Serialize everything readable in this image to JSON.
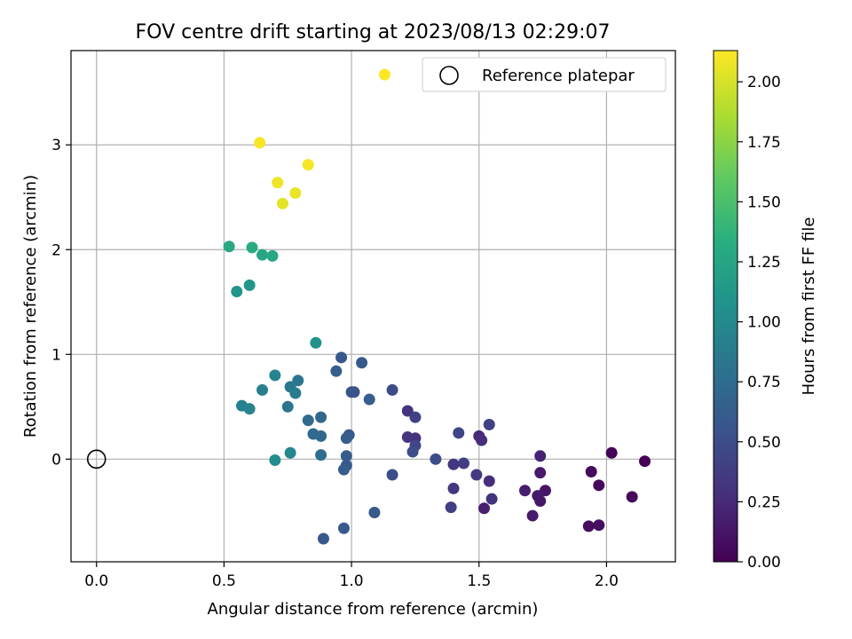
{
  "chart_data": {
    "type": "scatter",
    "title": "FOV centre drift starting at 2023/08/13 02:29:07",
    "xlabel": "Angular distance from reference (arcmin)",
    "ylabel": "Rotation from reference (arcmin)",
    "xlim": [
      -0.1,
      2.27
    ],
    "ylim": [
      -0.98,
      3.9
    ],
    "x_ticks": [
      0.0,
      0.5,
      1.0,
      1.5,
      2.0
    ],
    "x_tick_labels": [
      "0.0",
      "0.5",
      "1.0",
      "1.5",
      "2.0"
    ],
    "y_ticks": [
      0,
      1,
      2,
      3
    ],
    "y_tick_labels": [
      "0",
      "1",
      "2",
      "3"
    ],
    "grid": true,
    "legend": {
      "position": "top-right",
      "entries": [
        "Reference platepar"
      ]
    },
    "reference_point": {
      "x": 0.0,
      "y": 0.0,
      "label": "Reference platepar"
    },
    "colorbar": {
      "label": "Hours from first FF file",
      "colormap": "viridis",
      "range": [
        0.0,
        2.13
      ],
      "ticks": [
        0.0,
        0.25,
        0.5,
        0.75,
        1.0,
        1.25,
        1.5,
        1.75,
        2.0
      ],
      "tick_labels": [
        "0.00",
        "0.25",
        "0.50",
        "0.75",
        "1.00",
        "1.25",
        "1.50",
        "1.75",
        "2.00"
      ]
    },
    "points": [
      {
        "x": 2.15,
        "y": -0.02,
        "c": 0.0
      },
      {
        "x": 2.02,
        "y": 0.06,
        "c": 0.02
      },
      {
        "x": 2.1,
        "y": -0.36,
        "c": 0.04
      },
      {
        "x": 1.97,
        "y": -0.25,
        "c": 0.05
      },
      {
        "x": 1.94,
        "y": -0.12,
        "c": 0.06
      },
      {
        "x": 1.93,
        "y": -0.64,
        "c": 0.07
      },
      {
        "x": 1.97,
        "y": -0.63,
        "c": 0.08
      },
      {
        "x": 1.76,
        "y": -0.3,
        "c": 0.12
      },
      {
        "x": 1.74,
        "y": -0.4,
        "c": 0.13
      },
      {
        "x": 1.73,
        "y": -0.35,
        "c": 0.14
      },
      {
        "x": 1.74,
        "y": -0.13,
        "c": 0.15
      },
      {
        "x": 1.71,
        "y": -0.54,
        "c": 0.16
      },
      {
        "x": 1.68,
        "y": -0.3,
        "c": 0.17
      },
      {
        "x": 1.74,
        "y": 0.03,
        "c": 0.2
      },
      {
        "x": 1.52,
        "y": -0.47,
        "c": 0.18
      },
      {
        "x": 1.54,
        "y": -0.21,
        "c": 0.28
      },
      {
        "x": 1.55,
        "y": -0.38,
        "c": 0.32
      },
      {
        "x": 1.5,
        "y": 0.22,
        "c": 0.26
      },
      {
        "x": 1.51,
        "y": 0.18,
        "c": 0.27
      },
      {
        "x": 1.54,
        "y": 0.33,
        "c": 0.42
      },
      {
        "x": 1.49,
        "y": -0.15,
        "c": 0.36
      },
      {
        "x": 1.44,
        "y": -0.04,
        "c": 0.38
      },
      {
        "x": 1.4,
        "y": -0.05,
        "c": 0.35
      },
      {
        "x": 1.4,
        "y": -0.28,
        "c": 0.34
      },
      {
        "x": 1.39,
        "y": -0.46,
        "c": 0.4
      },
      {
        "x": 1.42,
        "y": 0.25,
        "c": 0.44
      },
      {
        "x": 1.33,
        "y": 0.0,
        "c": 0.5
      },
      {
        "x": 1.25,
        "y": 0.2,
        "c": 0.3
      },
      {
        "x": 1.22,
        "y": 0.21,
        "c": 0.33
      },
      {
        "x": 1.22,
        "y": 0.46,
        "c": 0.32
      },
      {
        "x": 1.25,
        "y": 0.4,
        "c": 0.42
      },
      {
        "x": 1.25,
        "y": 0.13,
        "c": 0.44
      },
      {
        "x": 1.24,
        "y": 0.07,
        "c": 0.5
      },
      {
        "x": 1.16,
        "y": 0.66,
        "c": 0.48
      },
      {
        "x": 1.16,
        "y": -0.15,
        "c": 0.5
      },
      {
        "x": 1.09,
        "y": -0.51,
        "c": 0.6
      },
      {
        "x": 1.04,
        "y": 0.92,
        "c": 0.6
      },
      {
        "x": 1.07,
        "y": 0.57,
        "c": 0.62
      },
      {
        "x": 1.01,
        "y": 0.64,
        "c": 0.52
      },
      {
        "x": 1.0,
        "y": 0.64,
        "c": 0.56
      },
      {
        "x": 0.96,
        "y": 0.97,
        "c": 0.58
      },
      {
        "x": 0.94,
        "y": 0.84,
        "c": 0.64
      },
      {
        "x": 0.99,
        "y": 0.23,
        "c": 0.6
      },
      {
        "x": 0.98,
        "y": 0.2,
        "c": 0.62
      },
      {
        "x": 0.98,
        "y": 0.03,
        "c": 0.62
      },
      {
        "x": 0.98,
        "y": -0.06,
        "c": 0.6
      },
      {
        "x": 0.97,
        "y": -0.1,
        "c": 0.62
      },
      {
        "x": 0.97,
        "y": -0.66,
        "c": 0.6
      },
      {
        "x": 0.89,
        "y": -0.76,
        "c": 0.58
      },
      {
        "x": 0.88,
        "y": 0.4,
        "c": 0.7
      },
      {
        "x": 0.88,
        "y": 0.22,
        "c": 0.72
      },
      {
        "x": 0.83,
        "y": 0.37,
        "c": 0.74
      },
      {
        "x": 0.85,
        "y": 0.24,
        "c": 0.74
      },
      {
        "x": 0.88,
        "y": 0.04,
        "c": 0.76
      },
      {
        "x": 0.79,
        "y": 0.75,
        "c": 0.84
      },
      {
        "x": 0.76,
        "y": 0.69,
        "c": 0.86
      },
      {
        "x": 0.78,
        "y": 0.63,
        "c": 0.88
      },
      {
        "x": 0.75,
        "y": 0.5,
        "c": 0.82
      },
      {
        "x": 0.7,
        "y": 0.8,
        "c": 0.96
      },
      {
        "x": 0.76,
        "y": 0.06,
        "c": 1.0
      },
      {
        "x": 0.7,
        "y": -0.01,
        "c": 1.04
      },
      {
        "x": 0.86,
        "y": 1.11,
        "c": 1.08
      },
      {
        "x": 0.65,
        "y": 0.66,
        "c": 0.92
      },
      {
        "x": 0.57,
        "y": 0.51,
        "c": 0.94
      },
      {
        "x": 0.6,
        "y": 0.48,
        "c": 0.96
      },
      {
        "x": 0.55,
        "y": 1.6,
        "c": 1.1
      },
      {
        "x": 0.6,
        "y": 1.66,
        "c": 1.12
      },
      {
        "x": 0.52,
        "y": 2.03,
        "c": 1.28
      },
      {
        "x": 0.61,
        "y": 2.02,
        "c": 1.3
      },
      {
        "x": 0.65,
        "y": 1.95,
        "c": 1.26
      },
      {
        "x": 0.69,
        "y": 1.94,
        "c": 1.27
      },
      {
        "x": 0.73,
        "y": 2.44,
        "c": 2.05
      },
      {
        "x": 0.78,
        "y": 2.54,
        "c": 2.07
      },
      {
        "x": 0.71,
        "y": 2.64,
        "c": 2.08
      },
      {
        "x": 0.83,
        "y": 2.81,
        "c": 2.1
      },
      {
        "x": 0.64,
        "y": 3.02,
        "c": 2.11
      },
      {
        "x": 1.13,
        "y": 3.67,
        "c": 2.13
      }
    ]
  }
}
